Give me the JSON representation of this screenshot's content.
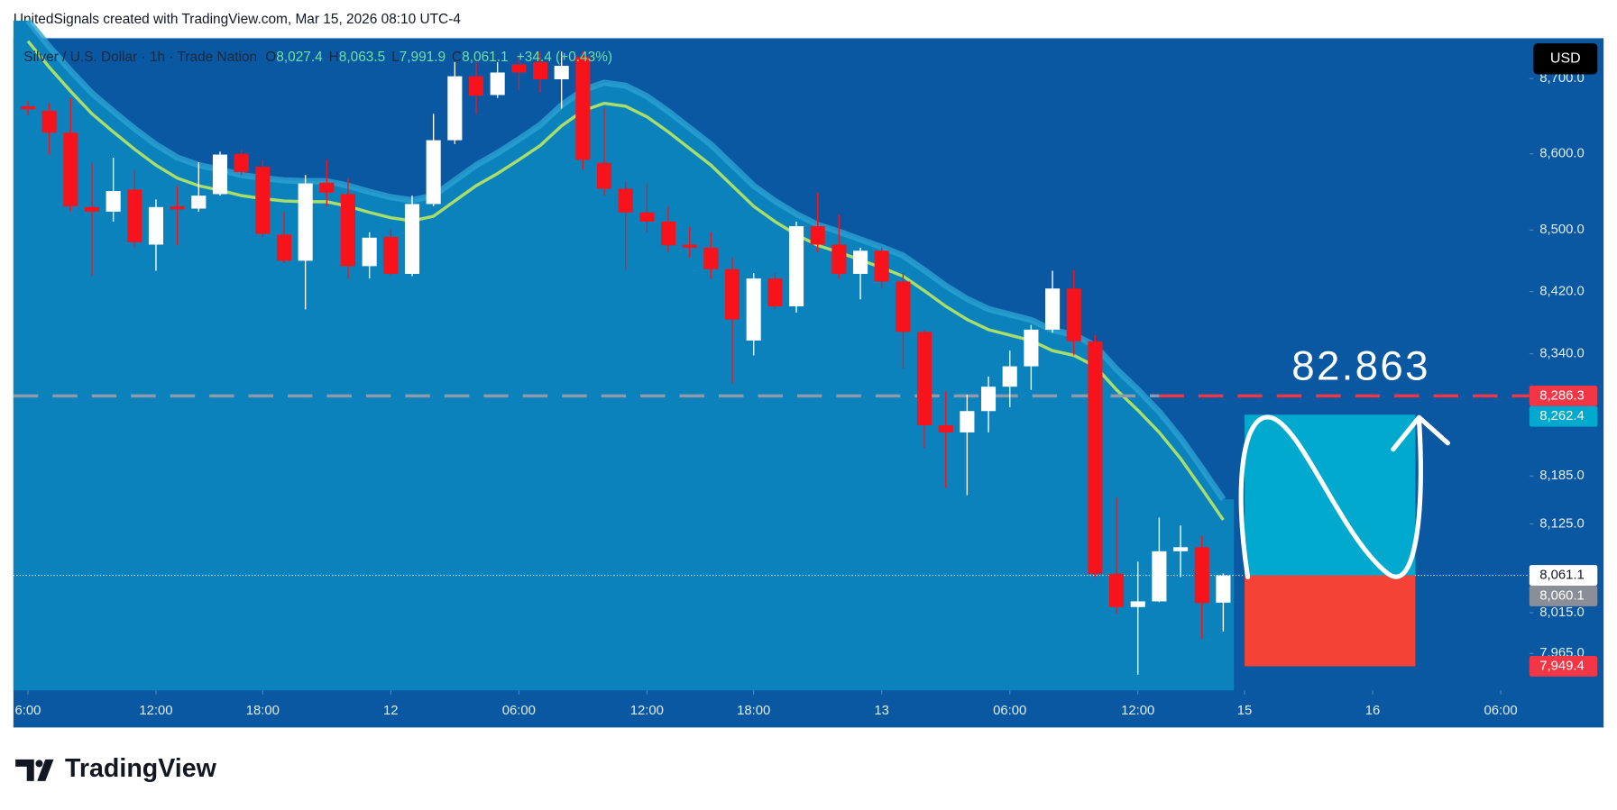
{
  "header": {
    "attribution": "UnitedSignals created with TradingView.com, Mar 15, 2026 08:10 UTC-4",
    "brand": "TradingView"
  },
  "chart_data": {
    "type": "candlestick",
    "title": "Silver / U.S. Dollar · 1h · Trade Nation",
    "legend_values": [
      {
        "label": "O",
        "value": "8,027.4"
      },
      {
        "label": "H",
        "value": "8,063.5"
      },
      {
        "label": "L",
        "value": "7,991.9"
      },
      {
        "label": "C",
        "value": "8,061.1"
      }
    ],
    "change": "+34.4 (+0.43%)",
    "currency": "USD",
    "open": [
      8663,
      8657,
      8628,
      8530,
      8524,
      8553,
      8481,
      8531,
      8528,
      8547,
      8600,
      8583,
      8494,
      8460,
      8562,
      8547,
      8453,
      8491,
      8443,
      8534,
      8618,
      8703,
      8678,
      8719,
      8722,
      8699,
      8729,
      8588,
      8554,
      8523,
      8511,
      8481,
      8477,
      8449,
      8357,
      8437,
      8401,
      8505,
      8481,
      8443,
      8473,
      8433,
      8368,
      8249,
      8240,
      8267,
      8298,
      8324,
      8371,
      8424,
      8356,
      8063,
      8022,
      8029,
      8091,
      8096,
      8027.4
    ],
    "high": [
      8670,
      8667,
      8674,
      8588,
      8595,
      8579,
      8540,
      8558,
      8589,
      8603,
      8606,
      8592,
      8524,
      8572,
      8592,
      8568,
      8497,
      8501,
      8545,
      8653,
      8722,
      8722,
      8722,
      8729,
      8736,
      8736,
      8736,
      8660,
      8564,
      8561,
      8531,
      8504,
      8497,
      8464,
      8444,
      8444,
      8511,
      8549,
      8520,
      8477,
      8477,
      8444,
      8371,
      8292,
      8288,
      8311,
      8344,
      8377,
      8447,
      8448,
      8364,
      8158,
      8078,
      8133,
      8123,
      8110,
      8063.5
    ],
    "low": [
      8651,
      8599,
      8524,
      8441,
      8511,
      8477,
      8447,
      8480,
      8524,
      8545,
      8572,
      8491,
      8457,
      8397,
      8531,
      8437,
      8437,
      8440,
      8440,
      8531,
      8613,
      8653,
      8674,
      8684,
      8681,
      8660,
      8579,
      8545,
      8448,
      8497,
      8471,
      8464,
      8437,
      8302,
      8338,
      8397,
      8393,
      8471,
      8437,
      8410,
      8424,
      8321,
      8220,
      8170,
      8161,
      8240,
      8272,
      8294,
      8367,
      8338,
      8059,
      8014,
      7939,
      8028,
      8059,
      7983,
      7991.9
    ],
    "close": [
      8659,
      8628,
      8531,
      8524,
      8551,
      8484,
      8530,
      8527,
      8545,
      8599,
      8576,
      8495,
      8460,
      8561,
      8549,
      8453,
      8490,
      8443,
      8534,
      8618,
      8703,
      8677,
      8708,
      8708,
      8699,
      8717,
      8592,
      8554,
      8523,
      8511,
      8480,
      8477,
      8449,
      8384,
      8437,
      8401,
      8505,
      8481,
      8443,
      8473,
      8433,
      8368,
      8249,
      8240,
      8267,
      8298,
      8324,
      8371,
      8424,
      8356,
      8063,
      8022,
      8029,
      8091,
      8096,
      8027,
      8061.1
    ],
    "up_color": "#ffffff",
    "down_color": "#f7131b",
    "moving_average": {
      "color": "#a9dd6c",
      "values": [
        8750,
        8715,
        8683,
        8653,
        8629,
        8606,
        8585,
        8568,
        8558,
        8552,
        8545,
        8541,
        8538,
        8537,
        8537,
        8531,
        8523,
        8516,
        8512,
        8518,
        8538,
        8558,
        8574,
        8592,
        8611,
        8637,
        8657,
        8667,
        8663,
        8649,
        8629,
        8607,
        8585,
        8558,
        8531,
        8511,
        8494,
        8480,
        8471,
        8461,
        8451,
        8440,
        8421,
        8401,
        8384,
        8371,
        8364,
        8357,
        8344,
        8338,
        8324,
        8294,
        8268,
        8240,
        8207,
        8169,
        8130
      ]
    },
    "log_scale": true,
    "grid": false,
    "xlim": [
      -0.68,
      70.34
    ],
    "xticks": [
      {
        "value": 0,
        "label": "6:00"
      },
      {
        "value": 6,
        "label": "12:00"
      },
      {
        "value": 11,
        "label": "18:00"
      },
      {
        "value": 17,
        "label": "12"
      },
      {
        "value": 23,
        "label": "06:00"
      },
      {
        "value": 29,
        "label": "12:00"
      },
      {
        "value": 34,
        "label": "18:00"
      },
      {
        "value": 40,
        "label": "13"
      },
      {
        "value": 46,
        "label": "06:00"
      },
      {
        "value": 52,
        "label": "12:00"
      },
      {
        "value": 57,
        "label": "15"
      },
      {
        "value": 63,
        "label": "16"
      },
      {
        "value": 69,
        "label": "06:00"
      }
    ],
    "ylim": [
      7920,
      8754
    ],
    "yticks": [
      {
        "value": 8700,
        "label": "8,700.0"
      },
      {
        "value": 8600,
        "label": "8,600.0"
      },
      {
        "value": 8500,
        "label": "8,500.0"
      },
      {
        "value": 8420,
        "label": "8,420.0"
      },
      {
        "value": 8340,
        "label": "8,340.0"
      },
      {
        "value": 8185,
        "label": "8,185.0"
      },
      {
        "value": 8125,
        "label": "8,125.0"
      },
      {
        "value": 8015,
        "label": "8,015.0"
      },
      {
        "value": 7965,
        "label": "7,965.0"
      }
    ],
    "price_line": {
      "value": 8286.3,
      "color": "#f23645"
    },
    "position": {
      "start": 57,
      "end": 65,
      "target": 8262.4,
      "entry": 8061.1,
      "stop": 7949.4,
      "target_color": "#00a9cd",
      "stop_color": "#f44336"
    },
    "price_labels": [
      {
        "value": 8286.3,
        "label": "8,286.3",
        "color": "#f23645"
      },
      {
        "value": 8262.4,
        "label": "8,262.4",
        "color": "#00a9cd"
      },
      {
        "value": 8061.1,
        "label": "8,061.1",
        "color": "#ffffff"
      },
      {
        "value": 8060.1,
        "label": "8,060.1",
        "color": "#8a8e97"
      },
      {
        "value": 7949.4,
        "label": "7,949.4",
        "color": "#f23645"
      }
    ],
    "annotation": "82.863"
  }
}
